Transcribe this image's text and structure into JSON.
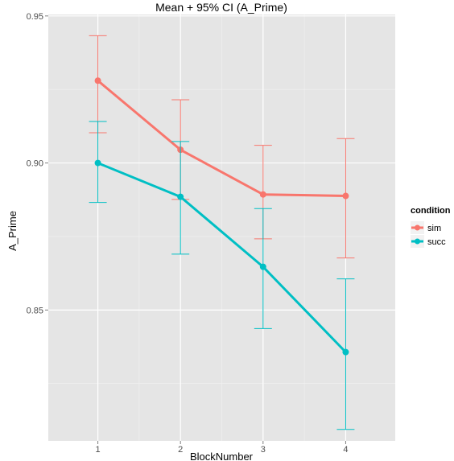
{
  "chart_data": {
    "type": "line",
    "title": "Mean + 95% CI (A_Prime)",
    "xlabel": "BlockNumber",
    "ylabel": "A_Prime",
    "x": [
      1,
      2,
      3,
      4
    ],
    "x_ticks": [
      "1",
      "2",
      "3",
      "4"
    ],
    "y_ticks": [
      "0.85",
      "0.90",
      "0.95"
    ],
    "xlim": [
      0.4,
      4.6
    ],
    "ylim": [
      0.8055,
      0.9505
    ],
    "grid": true,
    "legend_position": "right",
    "legend_title": "condition",
    "series": [
      {
        "name": "sim",
        "color": "#f8766d",
        "values": [
          0.928,
          0.9045,
          0.8893,
          0.8888
        ],
        "ci_low": [
          0.9103,
          0.8876,
          0.8742,
          0.8677
        ],
        "ci_high": [
          0.9433,
          0.9215,
          0.906,
          0.9083
        ]
      },
      {
        "name": "succ",
        "color": "#00bfc4",
        "values": [
          0.9,
          0.8885,
          0.8647,
          0.8357
        ],
        "ci_low": [
          0.8866,
          0.869,
          0.8437,
          0.8094
        ],
        "ci_high": [
          0.9141,
          0.9073,
          0.8845,
          0.8606
        ]
      }
    ]
  }
}
